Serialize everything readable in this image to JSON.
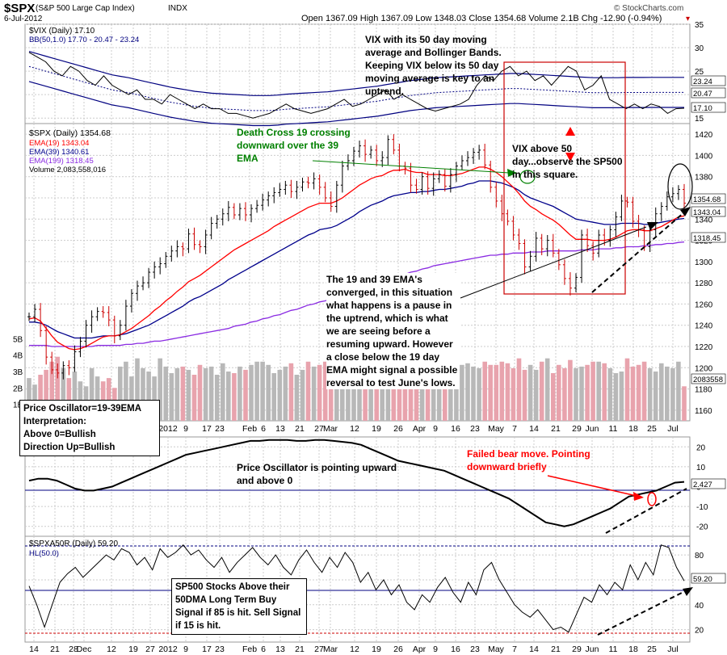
{
  "header": {
    "symbol": "$SPX",
    "name": "(S&P 500 Large Cap Index)",
    "exchange": "INDX",
    "date": "6-Jul-2012",
    "ohlc_text": "Open 1367.09  High 1367.09  Low 1348.03  Close 1354.68  Volume 2.1B  Chg -12.90 (-0.94%)",
    "chg_marker": "▾",
    "watermark": "© StockCharts.com"
  },
  "vix_panel": {
    "legend1": "$VIX (Daily) 17.10",
    "legend2": "BB(50,1.0) 17.70 - 20.47 - 23.24",
    "note": "VIX with its 50 day moving average and Bollinger Bands. Keeping VIX below its 50 day moving average is key to an uptrend.",
    "y_ticks": [
      "35",
      "30",
      "25",
      "20",
      "15"
    ],
    "tags": [
      "23.24",
      "20.47",
      "17.10"
    ]
  },
  "price_panel": {
    "legend": [
      "$SPX (Daily) 1354.68",
      "EMA(19) 1343.04",
      "EMA(39) 1340.61",
      "EMA(199) 1318.45",
      "Volume 2,083,558,016"
    ],
    "y_ticks": [
      "1420",
      "1400",
      "1380",
      "1360",
      "1340",
      "1320",
      "1300",
      "1280",
      "1260",
      "1240",
      "1220",
      "1200",
      "1180",
      "1160"
    ],
    "vol_ticks": [
      "5B",
      "4B",
      "3B",
      "2B",
      "1B"
    ],
    "tags": [
      "1354.68",
      "1343.04",
      "1318.45",
      "2083558"
    ],
    "x_ticks": [
      "14",
      "21",
      "28",
      "Dec",
      "12",
      "19",
      "27",
      "2012",
      "9",
      "17",
      "23",
      "Feb",
      "6",
      "13",
      "21",
      "27",
      "Mar",
      "12",
      "19",
      "26",
      "Apr",
      "9",
      "16",
      "23",
      "May",
      "7",
      "14",
      "21",
      "29",
      "Jun",
      "11",
      "18",
      "25",
      "Jul"
    ],
    "note_death_cross": "Death Cross 19 crossing downward over the 39 EMA",
    "note_vix": "VIX above 50 day...observe the SP500 in this square.",
    "note_ema": "The 19 and 39 EMA's converged, in this situation what happens is a pause in the uptrend, which is what we are seeing before a resuming upward. However a close below the 19 day EMA might signal a possible reversal to test June's lows.",
    "po_box": [
      "Price Oscillator=19-39EMA",
      "Interpretation:",
      "Above 0=Bullish",
      "Direction Up=Bullish"
    ]
  },
  "osc_panel": {
    "y_ticks": [
      "20",
      "10",
      "0",
      "-10",
      "-20"
    ],
    "tag": "2.427",
    "note_po": "Price Oscillator is pointing upward and above 0",
    "note_bear": "Failed bear move. Pointing downward briefly"
  },
  "breadth_panel": {
    "legend1": "$SPXA50R (Daily) 59.20",
    "legend2": "HL(50.0)",
    "y_ticks": [
      "80",
      "60",
      "40",
      "20"
    ],
    "tag": "59.20",
    "note": "SP500 Stocks Above their 50DMA Long Term Buy Signal if 85 is hit. Sell Signal if 15 is hit."
  },
  "colors": {
    "ema19": "#ff0000",
    "ema39": "#00008b",
    "ema199": "#8a2be2",
    "note_green": "#008000",
    "note_red": "#ff0000",
    "box_red": "#cc0000"
  },
  "chart_data": [
    {
      "type": "line",
      "title": "$VIX (Daily) 17.10",
      "series": [
        {
          "name": "$VIX (Daily)",
          "values": [
            29,
            28,
            27,
            25,
            24,
            26,
            25,
            23,
            22,
            24,
            22,
            21,
            20,
            21,
            19,
            19,
            18,
            20,
            19,
            18,
            17,
            18,
            17,
            17,
            16,
            16,
            15.5,
            15,
            15.5,
            16,
            17,
            18,
            17,
            16.5,
            16,
            16.5,
            17,
            18,
            19,
            17.5,
            18,
            19,
            20,
            21,
            19,
            20,
            19,
            18,
            17,
            16.5,
            17,
            17.5,
            18,
            19,
            22,
            24,
            23,
            25,
            26,
            24,
            25,
            23,
            24,
            22,
            24,
            26,
            25,
            21,
            22,
            24,
            19,
            18,
            17,
            18,
            17,
            18,
            17.5,
            16,
            17,
            17.1
          ]
        },
        {
          "name": "BB(50,1.0)",
          "values": [
            26,
            25.5,
            25,
            24.5,
            24,
            23.5,
            23,
            22.5,
            22,
            21.5,
            21,
            20.7,
            20.4,
            20,
            19.6,
            19.2,
            18.8,
            18.4,
            18.1,
            17.8,
            17.5,
            17.3,
            17.1,
            17,
            16.9,
            16.8,
            16.7,
            16.6,
            16.6,
            16.6,
            16.7,
            16.9,
            17,
            17.1,
            17.2,
            17.3,
            17.4,
            17.6,
            17.8,
            18,
            18.2,
            18.4,
            18.6,
            18.9,
            19.2,
            19.5,
            19.8,
            20,
            20.2,
            20.4,
            20.5,
            20.6,
            20.7,
            20.8,
            20.9,
            21,
            21.1,
            21.2,
            21.3,
            21.3,
            21.2,
            21.1,
            21,
            20.9,
            20.8,
            20.7,
            20.6,
            20.5,
            20.4,
            20.4,
            20.4,
            20.4,
            20.45,
            20.45,
            20.45,
            20.47,
            20.47,
            20.47,
            20.47,
            20.47
          ]
        }
      ],
      "ylim": [
        14,
        35
      ]
    },
    {
      "type": "line",
      "title": "$SPX (Daily) 1354.68",
      "series": [
        {
          "name": "$SPX (Daily)",
          "values": [
            1248,
            1255,
            1235,
            1210,
            1198,
            1195,
            1202,
            1200,
            1215,
            1225,
            1240,
            1248,
            1253,
            1252,
            1245,
            1230,
            1240,
            1258,
            1270,
            1277,
            1280,
            1290,
            1295,
            1298,
            1305,
            1310,
            1314,
            1312,
            1326,
            1316,
            1314,
            1325,
            1336,
            1340,
            1345,
            1351,
            1344,
            1350,
            1344,
            1350,
            1353,
            1358,
            1362,
            1365,
            1368,
            1372,
            1366,
            1370,
            1375,
            1374,
            1378,
            1370,
            1360,
            1352,
            1372,
            1390,
            1395,
            1404,
            1409,
            1401,
            1405,
            1395,
            1398,
            1415,
            1405,
            1390,
            1388,
            1372,
            1368,
            1380,
            1369,
            1378,
            1382,
            1371,
            1382,
            1390,
            1395,
            1398,
            1403,
            1405,
            1391,
            1370,
            1357,
            1345,
            1338,
            1325,
            1317,
            1295,
            1305,
            1322,
            1312,
            1320,
            1308,
            1297,
            1284,
            1275,
            1285,
            1325,
            1315,
            1308,
            1325,
            1320,
            1330,
            1342,
            1357,
            1356,
            1338,
            1330,
            1314,
            1330,
            1345,
            1352,
            1361,
            1364,
            1368,
            1355
          ]
        },
        {
          "name": "EMA(19)",
          "values": [
            1246,
            1247,
            1244,
            1237,
            1230,
            1224,
            1221,
            1218,
            1217,
            1218,
            1220,
            1223,
            1226,
            1229,
            1230,
            1230,
            1231,
            1234,
            1237,
            1241,
            1245,
            1249,
            1254,
            1258,
            1263,
            1267,
            1272,
            1276,
            1281,
            1284,
            1287,
            1291,
            1295,
            1299,
            1303,
            1307,
            1311,
            1314,
            1317,
            1320,
            1323,
            1326,
            1329,
            1333,
            1336,
            1339,
            1342,
            1345,
            1348,
            1351,
            1353,
            1355,
            1355,
            1355,
            1357,
            1360,
            1364,
            1368,
            1372,
            1375,
            1378,
            1380,
            1381,
            1384,
            1386,
            1386,
            1387,
            1385,
            1384,
            1384,
            1382,
            1382,
            1382,
            1381,
            1381,
            1382,
            1383,
            1385,
            1387,
            1389,
            1389,
            1387,
            1384,
            1380,
            1375,
            1370,
            1364,
            1357,
            1352,
            1349,
            1345,
            1342,
            1339,
            1335,
            1330,
            1325,
            1321,
            1321,
            1321,
            1320,
            1320,
            1320,
            1321,
            1323,
            1326,
            1329,
            1330,
            1330,
            1329,
            1329,
            1331,
            1333,
            1336,
            1339,
            1342,
            1343
          ]
        },
        {
          "name": "EMA(39)",
          "values": [
            1243,
            1243,
            1242,
            1240,
            1237,
            1234,
            1232,
            1230,
            1228,
            1228,
            1228,
            1228,
            1229,
            1230,
            1230,
            1230,
            1231,
            1232,
            1234,
            1236,
            1238,
            1240,
            1243,
            1246,
            1249,
            1252,
            1255,
            1258,
            1262,
            1265,
            1267,
            1270,
            1273,
            1276,
            1279,
            1283,
            1286,
            1289,
            1292,
            1295,
            1298,
            1301,
            1304,
            1307,
            1310,
            1313,
            1316,
            1319,
            1322,
            1325,
            1327,
            1330,
            1331,
            1332,
            1334,
            1337,
            1340,
            1343,
            1347,
            1350,
            1353,
            1355,
            1357,
            1360,
            1362,
            1363,
            1364,
            1365,
            1365,
            1366,
            1366,
            1367,
            1368,
            1368,
            1369,
            1370,
            1371,
            1373,
            1374,
            1376,
            1376,
            1376,
            1375,
            1374,
            1372,
            1370,
            1367,
            1363,
            1360,
            1358,
            1356,
            1354,
            1352,
            1349,
            1346,
            1343,
            1340,
            1339,
            1338,
            1337,
            1336,
            1335,
            1335,
            1335,
            1336,
            1336,
            1336,
            1336,
            1335,
            1335,
            1336,
            1337,
            1338,
            1339,
            1340,
            1340.6
          ]
        },
        {
          "name": "EMA(199)",
          "values": [
            1221,
            1221,
            1221,
            1221,
            1220,
            1220,
            1220,
            1220,
            1220,
            1220,
            1220,
            1220,
            1221,
            1221,
            1221,
            1221,
            1221,
            1222,
            1222,
            1223,
            1223,
            1224,
            1225,
            1225,
            1226,
            1227,
            1228,
            1229,
            1230,
            1231,
            1232,
            1233,
            1234,
            1235,
            1236,
            1237,
            1239,
            1240,
            1241,
            1243,
            1244,
            1246,
            1247,
            1249,
            1250,
            1252,
            1254,
            1255,
            1257,
            1259,
            1260,
            1262,
            1263,
            1265,
            1266,
            1268,
            1270,
            1272,
            1274,
            1276,
            1278,
            1280,
            1281,
            1283,
            1285,
            1287,
            1288,
            1290,
            1291,
            1293,
            1294,
            1296,
            1297,
            1298,
            1299,
            1300,
            1301,
            1302,
            1303,
            1304,
            1305,
            1306,
            1306,
            1307,
            1307,
            1308,
            1308,
            1308,
            1309,
            1309,
            1309,
            1310,
            1310,
            1310,
            1310,
            1310,
            1310,
            1311,
            1311,
            1311,
            1312,
            1312,
            1312,
            1313,
            1313,
            1314,
            1314,
            1314,
            1315,
            1315,
            1316,
            1316,
            1317,
            1317,
            1318,
            1318.45
          ]
        }
      ],
      "ylim": [
        1150,
        1430
      ]
    },
    {
      "type": "bar",
      "title": "Volume",
      "values": [
        2.6,
        2.2,
        2.8,
        3.1,
        3.6,
        3.9,
        3.2,
        2.6,
        3.0,
        2.4,
        2.1,
        3.2,
        2.7,
        2.4,
        2.6,
        2.0,
        3.3,
        3.6,
        2.7,
        3.8,
        3.2,
        3.0,
        2.7,
        3.8,
        3.3,
        2.9,
        3.2,
        3.3,
        3.1,
        2.8,
        3.4,
        3.2,
        3.3,
        2.8,
        3.5,
        3.0,
        2.9,
        3.3,
        3.1,
        3.4,
        3.6,
        3.6,
        3.4,
        2.9,
        3.1,
        3.3,
        3.5,
        2.8,
        3.1,
        3.6,
        3.3,
        3.4,
        3.6,
        3.2,
        3.4,
        3.5,
        2.9,
        3.5,
        3.1,
        3.3,
        3.5,
        3.6,
        3.3,
        3.2,
        3.6,
        3.6,
        3.2,
        3.5,
        3.1,
        3.3,
        3.3,
        3.4,
        3.1,
        3.6,
        3.3,
        3.1,
        3.4,
        3.5,
        3.3,
        3.2,
        3.6,
        3.4,
        3.4,
        3.6,
        3.5,
        3.2,
        3.8,
        3.1,
        3.4,
        3.1,
        3.6,
        3.8,
        2.9,
        3.4,
        3.2,
        3.7,
        3.2,
        3.3,
        3.4,
        3.6,
        3.6,
        3.5,
        3.2,
        2.9,
        3.0,
        3.8,
        3.3,
        3.4,
        3.6,
        3.2,
        3.0,
        3.5,
        3.3,
        3.2,
        3.6,
        2.1
      ],
      "unit": "B"
    },
    {
      "type": "line",
      "title": "Price Oscillator (19-39 EMA)",
      "series": [
        {
          "name": "Price Oscillator",
          "values": [
            3,
            4,
            4,
            3,
            1,
            -1,
            -2,
            -2,
            -1,
            0,
            2,
            4,
            6,
            8,
            10,
            12,
            14,
            16,
            17,
            18,
            19,
            20,
            21,
            22,
            23,
            23,
            23.5,
            23.5,
            23.5,
            23,
            23,
            23.5,
            23.5,
            23,
            22.5,
            22,
            21,
            19,
            17,
            15,
            13,
            12,
            11,
            10,
            9,
            8,
            6,
            4,
            2,
            0,
            -2,
            -4,
            -6,
            -9,
            -12,
            -15,
            -18,
            -19,
            -20,
            -19,
            -17,
            -15,
            -13,
            -11,
            -8,
            -5,
            -4,
            -3,
            -2,
            0,
            2,
            2.4
          ]
        }
      ],
      "ylim": [
        -25,
        25
      ]
    },
    {
      "type": "line",
      "title": "$SPXA50R (Daily) 59.20",
      "series": [
        {
          "name": "$SPXA50R (Daily)",
          "values": [
            55,
            40,
            22,
            40,
            58,
            65,
            70,
            62,
            68,
            74,
            80,
            76,
            85,
            82,
            72,
            78,
            68,
            85,
            78,
            82,
            88,
            80,
            84,
            76,
            70,
            78,
            66,
            74,
            80,
            86,
            78,
            72,
            80,
            70,
            64,
            76,
            84,
            74,
            66,
            78,
            70,
            82,
            74,
            58,
            66,
            52,
            60,
            48,
            56,
            42,
            36,
            48,
            42,
            54,
            62,
            50,
            42,
            58,
            48,
            68,
            74,
            60,
            50,
            40,
            34,
            30,
            36,
            28,
            20,
            22,
            18,
            32,
            46,
            42,
            56,
            48,
            58,
            52,
            72,
            60,
            74,
            64,
            88,
            86,
            70,
            59.2
          ]
        }
      ],
      "ylim": [
        10,
        95
      ]
    }
  ]
}
